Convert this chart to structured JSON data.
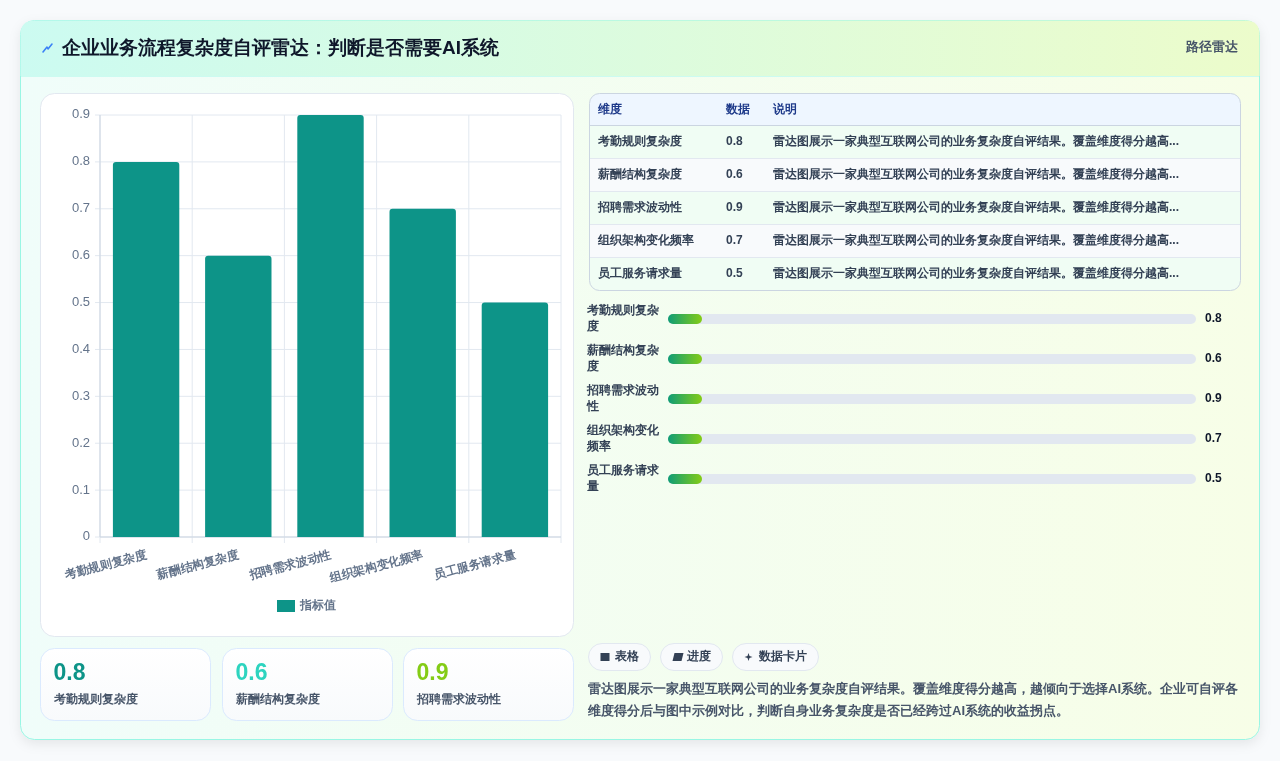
{
  "chart_data": [
    {
      "type": "other",
      "title": "企业业务流程复杂度自评雷达：判断是否需要AI系统",
      "subtitle": "路径雷达"
    },
    {
      "type": "bar",
      "categories": [
        "考勤规则复杂度",
        "薪酬结构复杂度",
        "招聘需求波动性",
        "组织架构变化频率",
        "员工服务请求量"
      ],
      "series": [
        {
          "name": "指标值",
          "color": "#0d9488",
          "values": [
            0.8,
            0.6,
            0.9,
            0.7,
            0.5
          ]
        }
      ],
      "ylim": [
        0,
        0.9
      ],
      "yticks": [
        0,
        0.1,
        0.2,
        0.3,
        0.4,
        0.5,
        0.6,
        0.7,
        0.8,
        0.9
      ],
      "grid": true,
      "legend": "bottom"
    },
    {
      "type": "other",
      "categories": [
        "考勤规则复杂度",
        "薪酬结构复杂度",
        "招聘需求波动性",
        "组织架构变化频率",
        "员工服务请求量"
      ],
      "values": [
        0.8,
        0.6,
        0.9,
        0.7,
        0.5
      ],
      "data_labels": true,
      "annotations": [
        "维度",
        "数据",
        "说明",
        "雷达图展示一家典型互联网公司的业务复杂度自评结果。覆盖维度得分越高...",
        "雷达图展示一家典型互联网公司的业务复杂度自评结果。覆盖维度得分越高...",
        "雷达图展示一家典型互联网公司的业务复杂度自评结果。覆盖维度得分越高...",
        "雷达图展示一家典型互联网公司的业务复杂度自评结果。覆盖维度得分越高...",
        "雷达图展示一家典型互联网公司的业务复杂度自评结果。覆盖维度得分越高..."
      ]
    },
    {
      "type": "other",
      "categories": [
        "考勤规则复杂度",
        "薪酬结构复杂度",
        "招聘需求波动性",
        "组织架构变化频率",
        "员工服务请求量"
      ],
      "values": [
        0.8,
        0.6,
        0.9,
        0.7,
        0.5
      ],
      "data_labels": true
    },
    {
      "type": "other",
      "categories": [
        "考勤规则复杂度",
        "薪酬结构复杂度",
        "招聘需求波动性"
      ],
      "values": [
        0.8,
        0.6,
        0.9
      ],
      "data_labels": true
    },
    {
      "type": "other",
      "annotations": [
        "表格",
        "进度",
        "数据卡片",
        "雷达图展示一家典型互联网公司的业务复杂度自评结果。覆盖维度得分越高，越倾向于选择AI系统。企业可自评各维度得分后与图中示例对比，判断自身业务复杂度是否已经跨过AI系统的收益拐点。"
      ]
    }
  ]
}
